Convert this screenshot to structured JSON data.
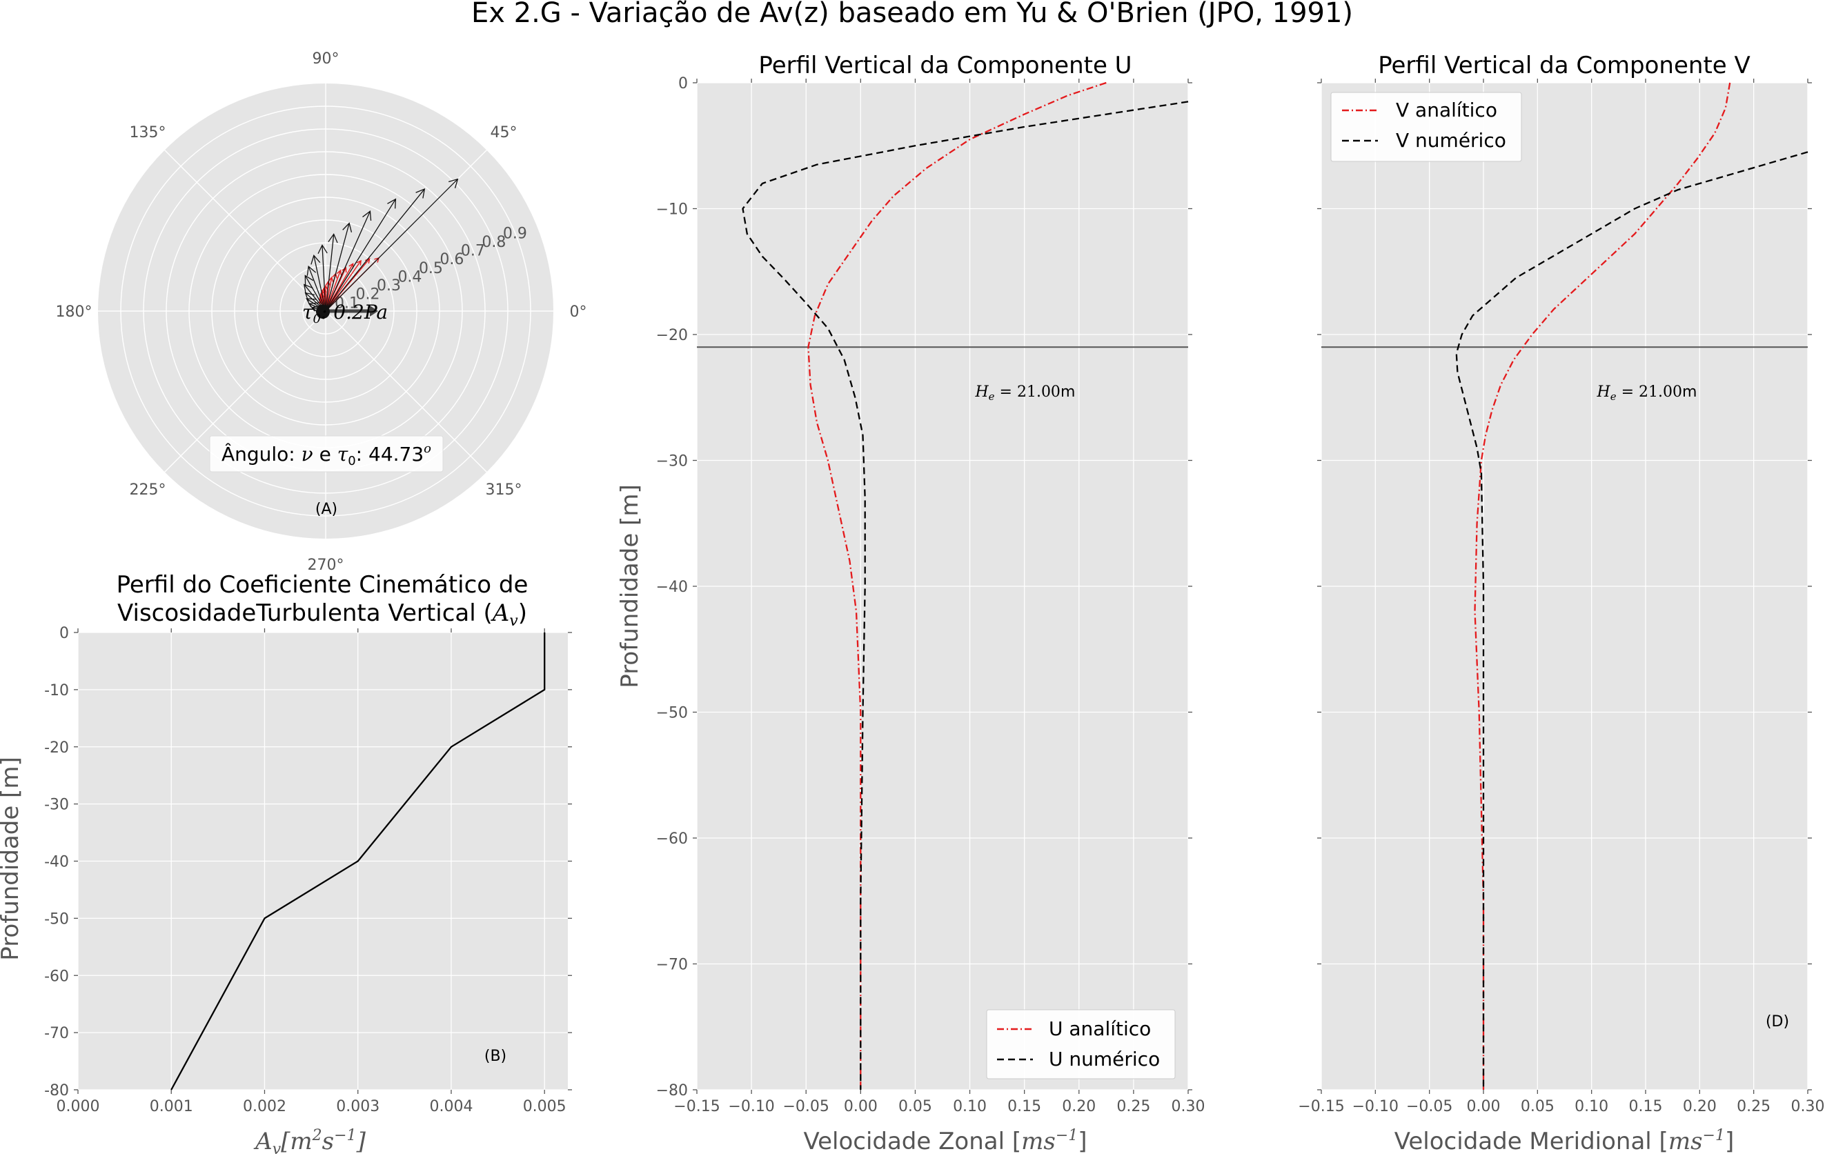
{
  "suptitle": "Ex 2.G - Variação de Av(z) baseado em Yu & O'Brien (JPO, 1991)",
  "colors": {
    "axes_bg": "#e5e5e5",
    "grid": "#ffffff",
    "analytic": "#e41a1c",
    "numeric": "#000000",
    "tick_text": "#555555"
  },
  "chart_data": [
    {
      "id": "A",
      "type": "polar",
      "panel_label": "(A)",
      "angle_ticks": [
        "0°",
        "45°",
        "90°",
        "135°",
        "180°",
        "225°",
        "270°",
        "315°"
      ],
      "radial_ticks": [
        "0.1",
        "0.2",
        "0.3",
        "0.4",
        "0.5",
        "0.6",
        "0.7",
        "0.8",
        "0.9"
      ],
      "rmax": 1.0,
      "wind_arrow": {
        "angle_deg": 0,
        "magnitude": 0.2,
        "label_prefix": "τ",
        "label_sub": "0",
        "label_suffix": ": 0.2Pa"
      },
      "info_box": {
        "prefix": "Ângulo: ",
        "nu": "ν",
        "mid": " e ",
        "tau": "τ",
        "tau_sub": "0",
        "sep": ": ",
        "value": "44.73",
        "unit": "o"
      },
      "black_vectors": [
        {
          "angle": 45,
          "r": 0.82
        },
        {
          "angle": 51,
          "r": 0.69
        },
        {
          "angle": 58,
          "r": 0.58
        },
        {
          "angle": 66,
          "r": 0.48
        },
        {
          "angle": 75,
          "r": 0.4
        },
        {
          "angle": 84,
          "r": 0.34
        },
        {
          "angle": 93,
          "r": 0.29
        },
        {
          "angle": 102,
          "r": 0.25
        },
        {
          "angle": 111,
          "r": 0.21
        },
        {
          "angle": 120,
          "r": 0.18
        },
        {
          "angle": 129,
          "r": 0.15
        },
        {
          "angle": 138,
          "r": 0.12
        },
        {
          "angle": 147,
          "r": 0.1
        },
        {
          "angle": 156,
          "r": 0.08
        },
        {
          "angle": 165,
          "r": 0.06
        }
      ],
      "red_vectors": [
        {
          "angle": 45,
          "r": 0.33
        },
        {
          "angle": 50,
          "r": 0.3
        },
        {
          "angle": 55,
          "r": 0.27
        },
        {
          "angle": 60,
          "r": 0.24
        },
        {
          "angle": 65,
          "r": 0.21
        },
        {
          "angle": 70,
          "r": 0.19
        },
        {
          "angle": 75,
          "r": 0.17
        },
        {
          "angle": 80,
          "r": 0.15
        },
        {
          "angle": 85,
          "r": 0.13
        },
        {
          "angle": 90,
          "r": 0.11
        },
        {
          "angle": 95,
          "r": 0.1
        },
        {
          "angle": 100,
          "r": 0.09
        },
        {
          "angle": 105,
          "r": 0.08
        },
        {
          "angle": 110,
          "r": 0.07
        },
        {
          "angle": 115,
          "r": 0.06
        },
        {
          "angle": 120,
          "r": 0.05
        }
      ]
    },
    {
      "id": "B",
      "type": "line",
      "panel_label": "(B)",
      "title_line1": "Perfil do Coeficiente Cinemático de",
      "title_line2_text": "ViscosidadeTurbulenta Vertical (",
      "title_line2_math": "A",
      "title_line2_sub": "v",
      "title_line2_end": ")",
      "xlabel": "A",
      "xlabel_sub": "v",
      "xlabel_rest": "[m",
      "xlabel_sup1": "2",
      "xlabel_mid": "s",
      "xlabel_sup2": "−1",
      "xlabel_end": "]",
      "ylabel": "Profundidade [m]",
      "xlim": [
        0.0,
        0.00525
      ],
      "ylim": [
        -80,
        0
      ],
      "xticks": [
        0.0,
        0.001,
        0.002,
        0.003,
        0.004,
        0.005
      ],
      "xtick_labels": [
        "0.000",
        "0.001",
        "0.002",
        "0.003",
        "0.004",
        "0.005"
      ],
      "yticks": [
        0,
        -10,
        -20,
        -30,
        -40,
        -50,
        -60,
        -70,
        -80
      ],
      "ytick_labels": [
        "0",
        "-10",
        "-20",
        "-30",
        "-40",
        "-50",
        "-60",
        "-70",
        "-80"
      ],
      "series": [
        {
          "color": "#000000",
          "style": "solid",
          "x": [
            0.005,
            0.005,
            0.004,
            0.003,
            0.002,
            0.001
          ],
          "y": [
            0,
            -10,
            -20,
            -40,
            -50,
            -80
          ]
        }
      ]
    },
    {
      "id": "C",
      "type": "line",
      "title": "Perfil Vertical da Componente U",
      "xlabel": "Velocidade Zonal [",
      "xlabel_math": "ms",
      "xlabel_sup": "−1",
      "xlabel_end": "]",
      "ylabel": "Profundidade [m]",
      "xlim": [
        -0.15,
        0.3
      ],
      "ylim": [
        -80,
        0
      ],
      "xticks": [
        -0.15,
        -0.1,
        -0.05,
        0.0,
        0.05,
        0.1,
        0.15,
        0.2,
        0.25,
        0.3
      ],
      "xtick_labels": [
        "−0.15",
        "−0.10",
        "−0.05",
        "0.00",
        "0.05",
        "0.10",
        "0.15",
        "0.20",
        "0.25",
        "0.30"
      ],
      "yticks": [
        0,
        -10,
        -20,
        -30,
        -40,
        -50,
        -60,
        -70,
        -80
      ],
      "ytick_labels": [
        "0",
        "−10",
        "−20",
        "−30",
        "−40",
        "−50",
        "−60",
        "−70",
        "−80"
      ],
      "hline": {
        "y": -21.0,
        "label_math": "H",
        "label_sub": "e",
        "label_eq": " = 21.00",
        "label_unit": "m",
        "label_x": 0.105,
        "label_y": -24.5
      },
      "legend": {
        "position": "lower right",
        "entries": [
          "U analítico",
          "U numérico"
        ]
      },
      "series": [
        {
          "name": "U analítico",
          "color": "#e41a1c",
          "style": "dashdot",
          "x": [
            0.225,
            0.19,
            0.15,
            0.1,
            0.06,
            0.03,
            0.01,
            -0.01,
            -0.03,
            -0.042,
            -0.048,
            -0.046,
            -0.04,
            -0.03,
            -0.02,
            -0.01,
            -0.004,
            0.0,
            0.0,
            0.0
          ],
          "y": [
            0,
            -1,
            -2.5,
            -4.5,
            -6.8,
            -9,
            -11,
            -13.5,
            -16,
            -18.5,
            -21,
            -24,
            -27,
            -30,
            -34,
            -38,
            -42,
            -50,
            -65,
            -80
          ]
        },
        {
          "name": "U numérico",
          "color": "#000000",
          "style": "dashed",
          "x": [
            0.3,
            0.24,
            0.15,
            0.05,
            -0.04,
            -0.09,
            -0.108,
            -0.104,
            -0.09,
            -0.07,
            -0.05,
            -0.03,
            -0.015,
            -0.005,
            0.002,
            0.004,
            0.004,
            0.002,
            0.0,
            0.0
          ],
          "y": [
            -1.5,
            -2.3,
            -3.5,
            -5,
            -6.5,
            -8,
            -10,
            -12,
            -13.8,
            -15.6,
            -17.5,
            -19.5,
            -22,
            -25,
            -28,
            -33,
            -40,
            -50,
            -65,
            -80
          ]
        }
      ]
    },
    {
      "id": "D",
      "type": "line",
      "title": "Perfil Vertical da Componente V",
      "panel_label": "(D)",
      "xlabel": "Velocidade Meridional [",
      "xlabel_math": "ms",
      "xlabel_sup": "−1",
      "xlabel_end": "]",
      "xlim": [
        -0.15,
        0.3
      ],
      "ylim": [
        -80,
        0
      ],
      "xticks": [
        -0.15,
        -0.1,
        -0.05,
        0.0,
        0.05,
        0.1,
        0.15,
        0.2,
        0.25,
        0.3
      ],
      "xtick_labels": [
        "−0.15",
        "−0.10",
        "−0.05",
        "0.00",
        "0.05",
        "0.10",
        "0.15",
        "0.20",
        "0.25",
        "0.30"
      ],
      "hline": {
        "y": -21.0,
        "label_math": "H",
        "label_sub": "e",
        "label_eq": " = 21.00",
        "label_unit": "m",
        "label_x": 0.105,
        "label_y": -24.5
      },
      "legend": {
        "position": "upper left",
        "entries": [
          "V analítico",
          "V numérico"
        ]
      },
      "series": [
        {
          "name": "V analítico",
          "color": "#e41a1c",
          "style": "dashdot",
          "x": [
            0.228,
            0.224,
            0.214,
            0.198,
            0.18,
            0.16,
            0.14,
            0.115,
            0.09,
            0.065,
            0.045,
            0.028,
            0.016,
            0.008,
            0.002,
            -0.002,
            -0.006,
            -0.008,
            -0.004,
            0.0,
            0.0
          ],
          "y": [
            0,
            -2,
            -4,
            -6,
            -8,
            -10,
            -12,
            -14,
            -16,
            -18,
            -20,
            -22,
            -24,
            -26,
            -28,
            -30,
            -35,
            -42,
            -50,
            -65,
            -80
          ]
        },
        {
          "name": "V numérico",
          "color": "#000000",
          "style": "dashed",
          "x": [
            0.3,
            0.26,
            0.22,
            0.18,
            0.14,
            0.1,
            0.06,
            0.03,
            0.01,
            -0.01,
            -0.02,
            -0.025,
            -0.024,
            -0.018,
            -0.012,
            -0.006,
            -0.002,
            0.0,
            0.0,
            0.0
          ],
          "y": [
            -5.5,
            -6.5,
            -7.5,
            -8.5,
            -10,
            -12,
            -14,
            -15.5,
            -17,
            -18.5,
            -20,
            -21.5,
            -23,
            -25,
            -27,
            -29,
            -31,
            -40,
            -60,
            -80
          ]
        }
      ]
    }
  ]
}
